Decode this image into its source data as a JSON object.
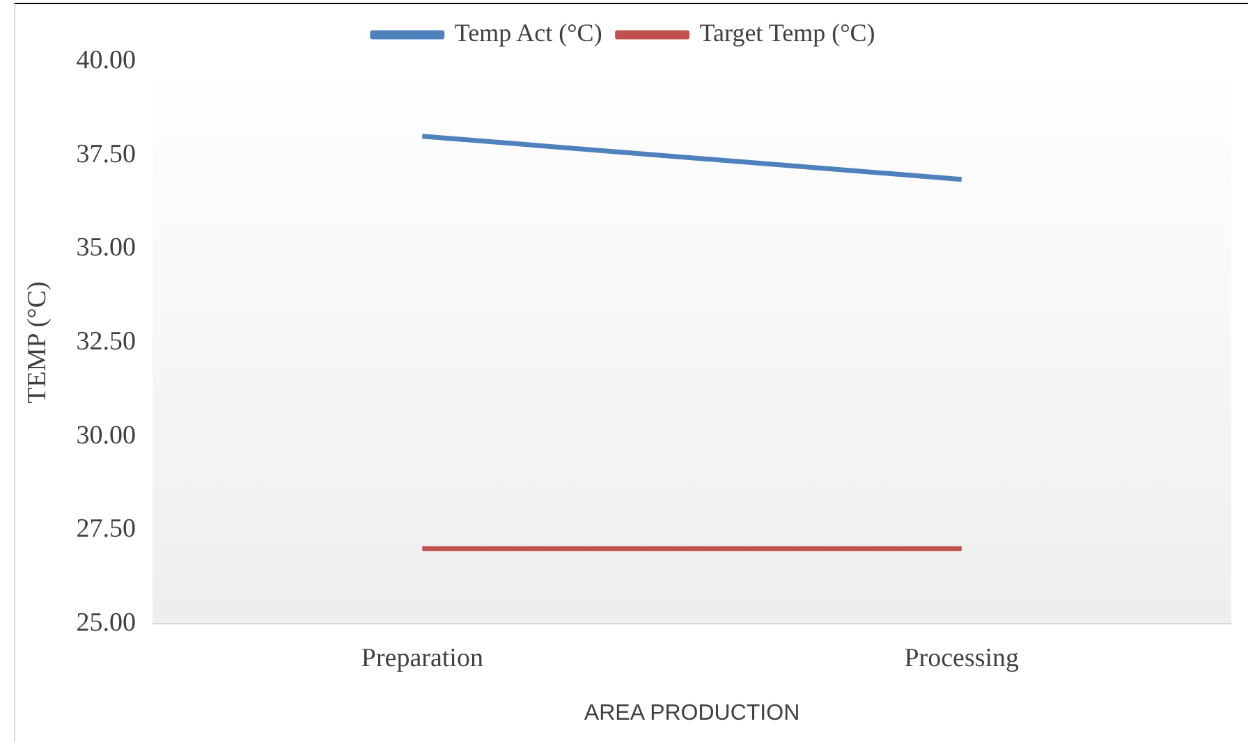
{
  "chart_data": {
    "type": "line",
    "xlabel": "AREA PRODUCTION",
    "ylabel": "TEMP (°C)",
    "categories": [
      "Preparation",
      "Processing"
    ],
    "series": [
      {
        "name": "Temp Act (°C)",
        "color": "#4f81bd",
        "values": [
          38.0,
          36.85
        ]
      },
      {
        "name": "Target Temp (°C)",
        "color": "#c0504d",
        "values": [
          27.0,
          27.0
        ]
      }
    ],
    "ylim": [
      25,
      40
    ],
    "yticks": [
      {
        "value": 25,
        "label": "25.00"
      },
      {
        "value": 27.5,
        "label": "27.50"
      },
      {
        "value": 30,
        "label": "30.00"
      },
      {
        "value": 32.5,
        "label": "32.50"
      },
      {
        "value": 35,
        "label": "35.00"
      },
      {
        "value": 37.5,
        "label": "37.50"
      },
      {
        "value": 40,
        "label": "40.00"
      }
    ],
    "grid": false,
    "legend": "top",
    "marker": "none",
    "line_style": "solid"
  }
}
